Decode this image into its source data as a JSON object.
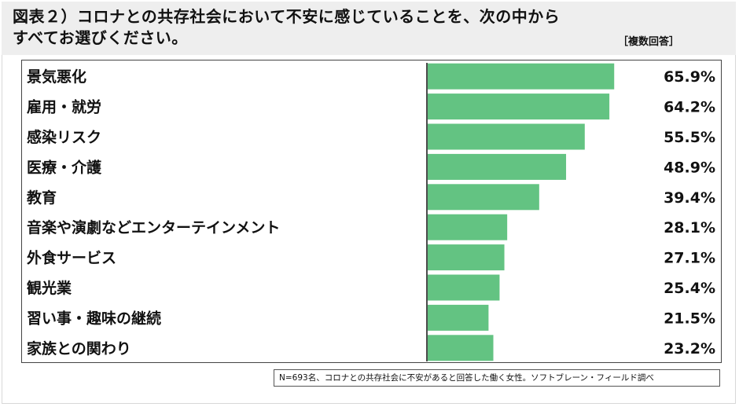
{
  "header": {
    "title_line1": "図表２）コロナとの共存社会において不安に感じていることを、次の中から",
    "title_line2": "すべてお選びください。",
    "note": "［複数回答］"
  },
  "source": "N=693名、コロナとの共存社会に不安があると回答した働く女性。ソフトブレーン・フィールド調べ",
  "colors": {
    "bar": "#63c382",
    "axis": "#111111",
    "border": "#444444"
  },
  "chart_data": {
    "type": "bar",
    "orientation": "horizontal",
    "categories": [
      "景気悪化",
      "雇用・就労",
      "感染リスク",
      "医療・介護",
      "教育",
      "音楽や演劇などエンターテインメント",
      "外食サービス",
      "観光業",
      "習い事・趣味の継続",
      "家族との関わり"
    ],
    "values": [
      65.9,
      64.2,
      55.5,
      48.9,
      39.4,
      28.1,
      27.1,
      25.4,
      21.5,
      23.2
    ],
    "value_labels": [
      "65.9%",
      "64.2%",
      "55.5%",
      "48.9%",
      "39.4%",
      "28.1%",
      "27.1%",
      "25.4%",
      "21.5%",
      "23.2%"
    ],
    "xlim": [
      0,
      100
    ],
    "grid": false,
    "legend": "none"
  }
}
